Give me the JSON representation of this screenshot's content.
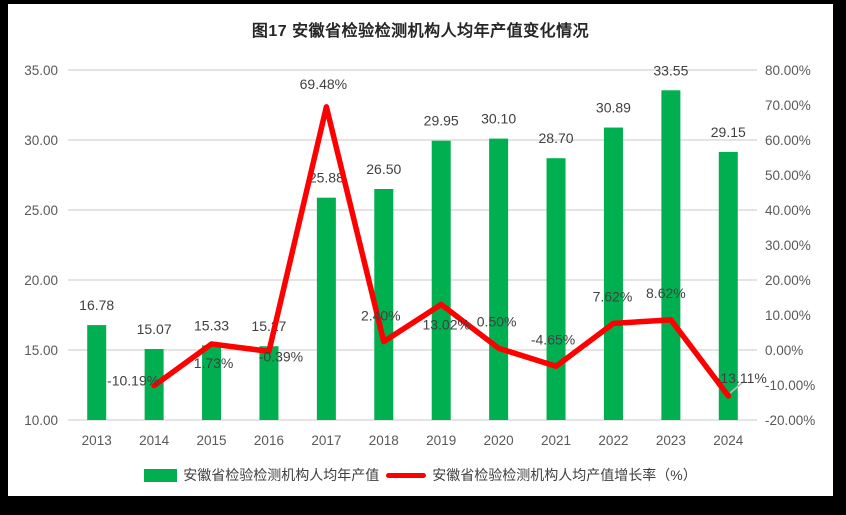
{
  "title": "图17 安徽省检验检测机构人均年产值变化情况",
  "colors": {
    "frame_bg": "#000000",
    "panel_bg": "#FFFFFF",
    "bar": "#00B050",
    "line": "#FF0000",
    "grid": "#DCDCDC",
    "tick_text": "#595959",
    "data_label_text": "#404040",
    "leader_line": "#BFBFBF"
  },
  "legend": [
    {
      "label": "安徽省检验检测机构人均年产值",
      "color": "#00B050",
      "marker": "bar"
    },
    {
      "label": "安徽省检验检测机构人均产值增长率（%）",
      "color": "#FF0000",
      "marker": "line"
    }
  ],
  "chart_data": {
    "type": "bar",
    "combo": "bar+line",
    "title": "图17 安徽省检验检测机构人均年产值变化情况",
    "categories": [
      "2013",
      "2014",
      "2015",
      "2016",
      "2017",
      "2018",
      "2019",
      "2020",
      "2021",
      "2022",
      "2023",
      "2024"
    ],
    "series": [
      {
        "name": "安徽省检验检测机构人均年产值",
        "type": "bar",
        "axis": "left",
        "color": "#00B050",
        "values": [
          16.78,
          15.07,
          15.33,
          15.27,
          25.88,
          26.5,
          29.95,
          30.1,
          28.7,
          30.89,
          33.55,
          29.15
        ],
        "data_labels": [
          "16.78",
          "15.07",
          "15.33",
          "15.27",
          "25.88",
          "26.50",
          "29.95",
          "30.10",
          "28.70",
          "30.89",
          "33.55",
          "29.15"
        ]
      },
      {
        "name": "安徽省检验检测机构人均产值增长率（%）",
        "type": "line",
        "axis": "right",
        "color": "#FF0000",
        "values": [
          null,
          -10.19,
          1.73,
          -0.39,
          69.48,
          2.4,
          13.02,
          0.5,
          -4.65,
          7.62,
          8.62,
          -13.11
        ],
        "data_labels": [
          "",
          "-10.19%",
          "1.73%",
          "-0.39%",
          "69.48%",
          "2.40%",
          "13.02%",
          "0.50%",
          "-4.65%",
          "7.62%",
          "8.62%",
          "-13.11%"
        ],
        "label_offsets": [
          null,
          [
            -21,
            0
          ],
          [
            2,
            24
          ],
          [
            12,
            10
          ],
          [
            -3,
            -18
          ],
          [
            -3,
            -21
          ],
          [
            5,
            25
          ],
          [
            -2,
            -22
          ],
          [
            -3,
            -22
          ],
          [
            -1,
            -22
          ],
          [
            -5,
            -22
          ],
          [
            13,
            -13
          ]
        ]
      }
    ],
    "left_axis": {
      "min": 10,
      "max": 35,
      "step": 5,
      "values": [
        35,
        30,
        25,
        20,
        15,
        10
      ],
      "ticks": [
        "35.00",
        "30.00",
        "25.00",
        "20.00",
        "15.00",
        "10.00"
      ]
    },
    "right_axis": {
      "min": -20,
      "max": 80,
      "step": 10,
      "values": [
        80,
        70,
        60,
        50,
        40,
        30,
        20,
        10,
        0,
        -10,
        -20
      ],
      "ticks": [
        "80.00%",
        "70.00%",
        "60.00%",
        "50.00%",
        "40.00%",
        "30.00%",
        "20.00%",
        "10.00%",
        "0.00%",
        "-10.00%",
        "-20.00%"
      ]
    },
    "grid": "horizontal gridlines at left-axis ticks",
    "legend_position": "bottom"
  }
}
